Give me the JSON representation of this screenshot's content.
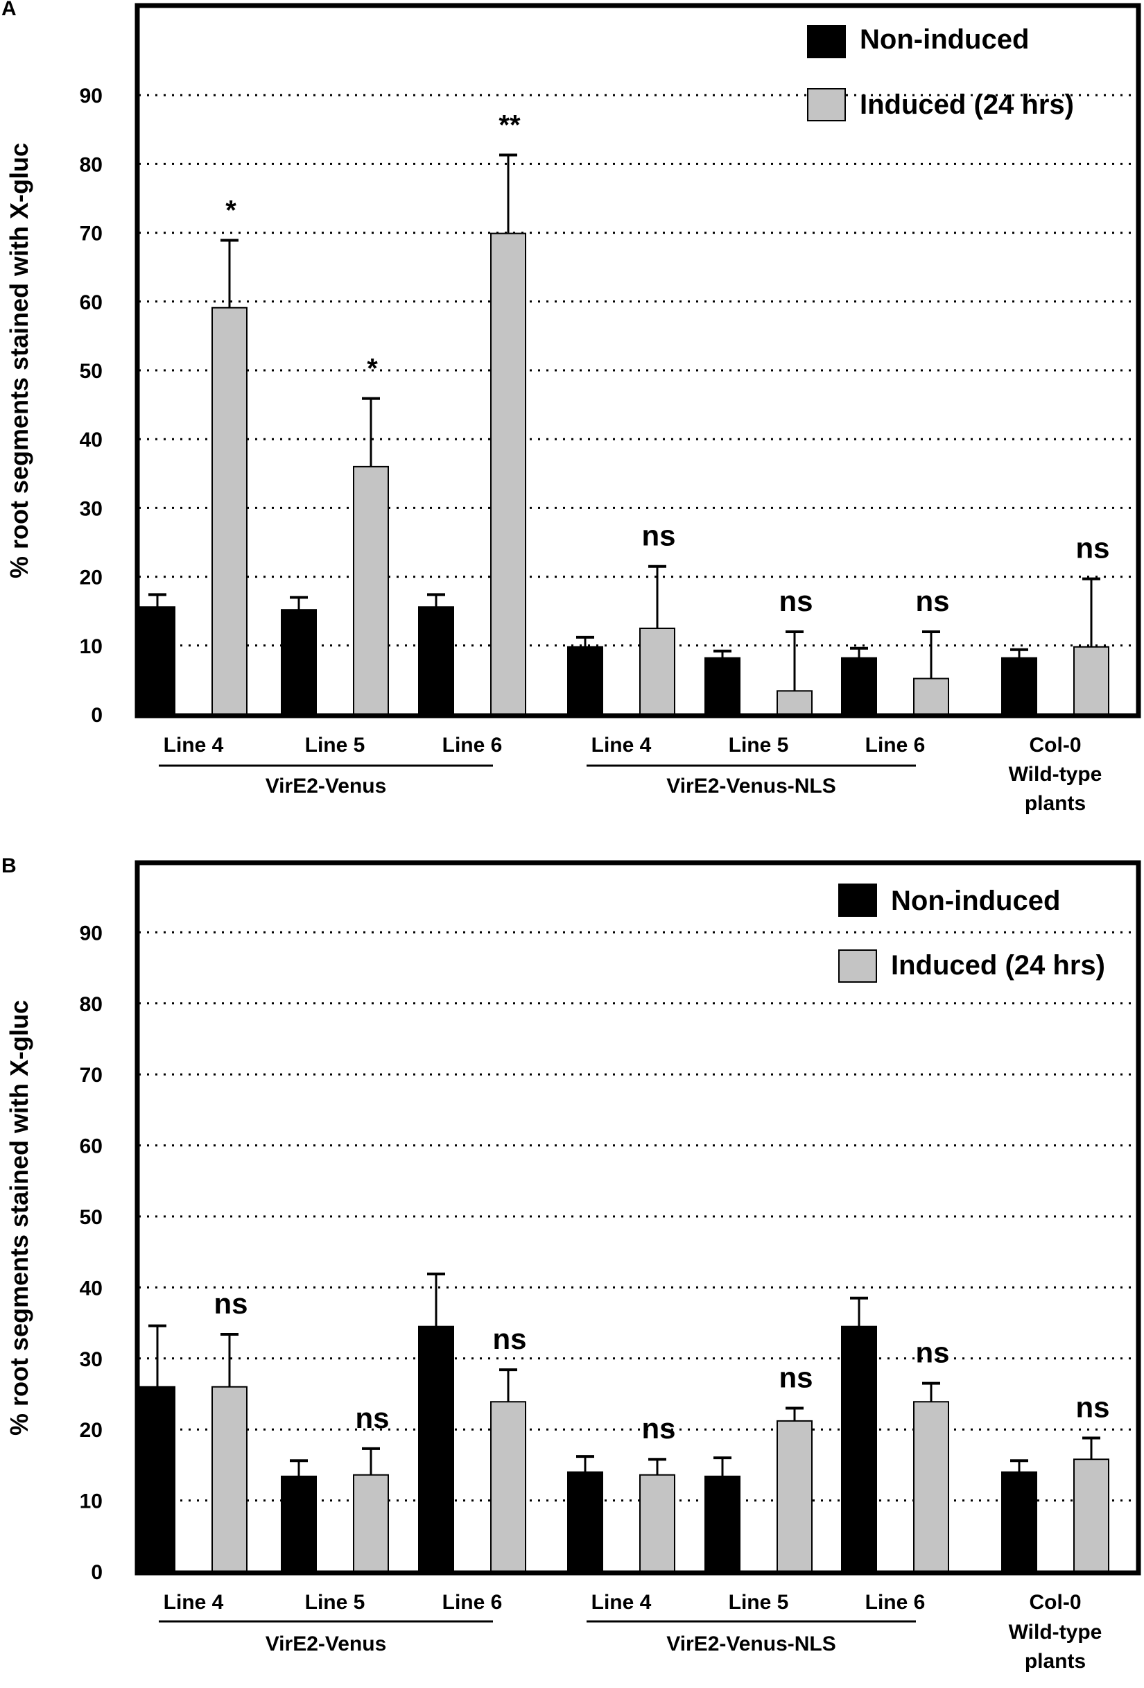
{
  "figure": {
    "colors": {
      "non_induced": "#000000",
      "induced": "#c4c4c4",
      "axis": "#000000"
    }
  },
  "chart_data": [
    {
      "panel": "A",
      "type": "bar",
      "ylabel": "% root segments stained with X-gluc",
      "ylim": [
        0,
        100
      ],
      "yticks": [
        0,
        10,
        20,
        30,
        40,
        50,
        60,
        70,
        80,
        90
      ],
      "grid": true,
      "legend_placement": "top-right",
      "legend": [
        "Non-induced",
        "Induced (24 hrs)"
      ],
      "categories": [
        "Line 4",
        "Line 5",
        "Line 6",
        "Line 4",
        "Line 5",
        "Line 6",
        "Col-0"
      ],
      "groups": [
        {
          "label": "VirE2-Venus",
          "from": 0,
          "to": 2
        },
        {
          "label": "VirE2-Venus-NLS",
          "from": 3,
          "to": 5
        },
        {
          "label": "Wild-type\nplants",
          "from": 6,
          "to": 6,
          "no_line": true
        }
      ],
      "series": [
        {
          "name": "Non-induced",
          "values": [
            15.6,
            15.2,
            15.6,
            9.8,
            8.2,
            8.2,
            8.2
          ],
          "errors": [
            1.8,
            1.8,
            1.8,
            1.4,
            1.0,
            1.4,
            1.2
          ]
        },
        {
          "name": "Induced (24 hrs)",
          "values": [
            59.1,
            36.0,
            69.9,
            12.5,
            3.4,
            5.2,
            9.8
          ],
          "errors": [
            9.8,
            9.9,
            11.4,
            9.0,
            8.6,
            6.8,
            9.9
          ]
        }
      ],
      "annotations": [
        "*",
        "*",
        "**",
        "ns",
        "ns",
        "ns",
        "ns"
      ]
    },
    {
      "panel": "B",
      "type": "bar",
      "ylabel": "% root segments stained with X-gluc",
      "ylim": [
        0,
        100
      ],
      "yticks": [
        0,
        10,
        20,
        30,
        40,
        50,
        60,
        70,
        80,
        90
      ],
      "grid": true,
      "legend_placement": "top-right",
      "legend": [
        "Non-induced",
        "Induced (24 hrs)"
      ],
      "categories": [
        "Line 4",
        "Line 5",
        "Line 6",
        "Line 4",
        "Line 5",
        "Line 6",
        "Col-0"
      ],
      "groups": [
        {
          "label": "VirE2-Venus",
          "from": 0,
          "to": 2
        },
        {
          "label": "VirE2-Venus-NLS",
          "from": 3,
          "to": 5
        },
        {
          "label": "Wild-type\nplants",
          "from": 6,
          "to": 6,
          "no_line": true
        }
      ],
      "series": [
        {
          "name": "Non-induced",
          "values": [
            26.0,
            13.4,
            34.5,
            14.0,
            13.4,
            34.5,
            14.0
          ],
          "errors": [
            8.6,
            2.2,
            7.4,
            2.2,
            2.6,
            4.0,
            1.6
          ]
        },
        {
          "name": "Induced (24 hrs)",
          "values": [
            26.0,
            13.6,
            23.9,
            13.6,
            21.2,
            23.9,
            15.8
          ],
          "errors": [
            7.4,
            3.7,
            4.5,
            2.2,
            1.8,
            2.6,
            3.0
          ]
        }
      ],
      "annotations": [
        "ns",
        "ns",
        "ns",
        "ns",
        "ns",
        "ns",
        "ns"
      ]
    }
  ]
}
